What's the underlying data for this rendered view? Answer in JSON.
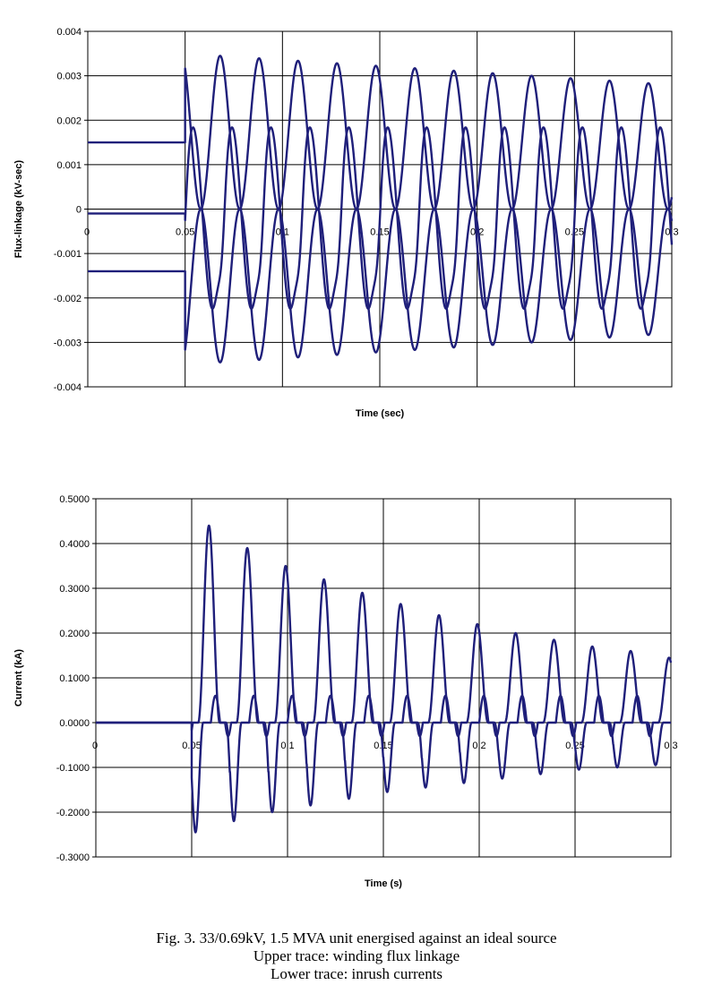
{
  "chart_data": [
    {
      "type": "line",
      "xlabel": "Time (sec)",
      "ylabel": "Flux-linkage (kV-sec)",
      "xlim": [
        0,
        0.3
      ],
      "ylim": [
        -0.004,
        0.004
      ],
      "x_ticks": [
        "0",
        "0.05",
        "0.1",
        "0.15",
        "0.2",
        "0.25",
        "0.3"
      ],
      "y_ticks": [
        "0.004",
        "0.003",
        "0.002",
        "0.001",
        "0",
        "-0.001",
        "-0.002",
        "-0.003",
        "-0.004"
      ],
      "grid": true,
      "line_color": "#1f1f7a",
      "energisation_time": 0.05,
      "frequency_hz": 50,
      "series": [
        {
          "pre_value": 0.0015,
          "peak_first": 0.0035,
          "peak_last": 0.0028,
          "phase_deg": 0
        },
        {
          "pre_value": -0.0001,
          "peak_first": 0.0018,
          "peak_last": 0.0017,
          "phase_deg": 120
        },
        {
          "pre_value": -0.0014,
          "peak_first": -0.0035,
          "peak_last": -0.0028,
          "phase_deg": 240
        }
      ]
    },
    {
      "type": "line",
      "xlabel": "Time (s)",
      "ylabel": "Current (kA)",
      "xlim": [
        0,
        0.3
      ],
      "ylim": [
        -0.3,
        0.5
      ],
      "x_ticks": [
        "0",
        "0.05",
        "0.1",
        "0.15",
        "0.2",
        "0.25",
        "0.3"
      ],
      "y_ticks": [
        "0.5000",
        "0.4000",
        "0.3000",
        "0.2000",
        "0.1000",
        "0.0000",
        "-0.1000",
        "-0.2000",
        "-0.3000"
      ],
      "grid": true,
      "line_color": "#1f1f7a",
      "energisation_time": 0.05,
      "frequency_hz": 50,
      "peaks_positive": [
        0.44,
        0.39,
        0.35,
        0.32,
        0.29,
        0.265,
        0.24,
        0.22,
        0.2,
        0.185,
        0.17,
        0.16,
        0.145
      ],
      "peaks_negative": [
        -0.245,
        -0.22,
        -0.2,
        -0.185,
        -0.17,
        -0.155,
        -0.145,
        -0.135,
        -0.125,
        -0.115,
        -0.105,
        -0.1,
        -0.095
      ]
    }
  ],
  "caption": {
    "line1": "Fig. 3.   33/0.69kV, 1.5 MVA unit energised against an ideal source",
    "line2": "Upper trace: winding flux linkage",
    "line3": "Lower trace:  inrush currents"
  }
}
